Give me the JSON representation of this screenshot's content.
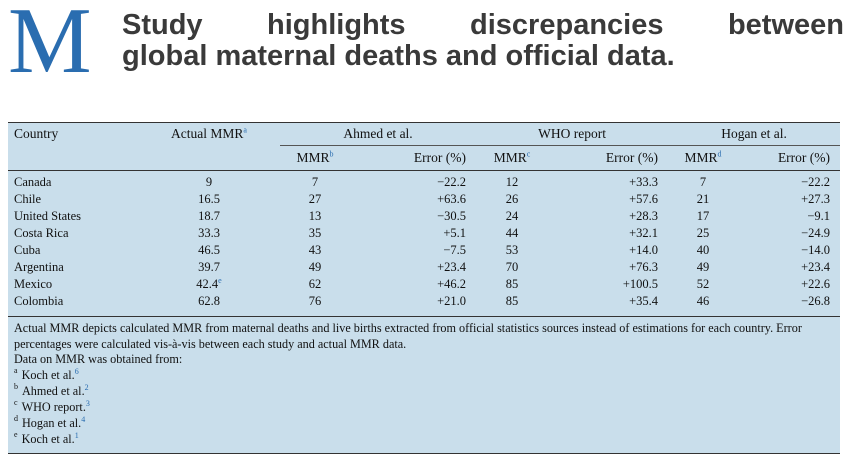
{
  "header": {
    "logo": "M",
    "headline_line1_words": [
      "Study",
      "highlights",
      "discrepancies",
      "between"
    ],
    "headline_line2": "global maternal deaths and official data."
  },
  "table": {
    "col_country": "Country",
    "col_actual": "Actual MMR",
    "col_actual_ref": "a",
    "groups": [
      {
        "name": "Ahmed et al.",
        "mmr": "MMR",
        "mmr_ref": "b",
        "err": "Error (%)"
      },
      {
        "name": "WHO report",
        "mmr": "MMR",
        "mmr_ref": "c",
        "err": "Error (%)"
      },
      {
        "name": "Hogan et al.",
        "mmr": "MMR",
        "mmr_ref": "d",
        "err": "Error (%)"
      }
    ],
    "rows": [
      {
        "country": "Canada",
        "actual": "9",
        "actual_ref": "",
        "ahmed_mmr": "7",
        "ahmed_err": "−22.2",
        "who_mmr": "12",
        "who_err": "+33.3",
        "hogan_mmr": "7",
        "hogan_err": "−22.2"
      },
      {
        "country": "Chile",
        "actual": "16.5",
        "actual_ref": "",
        "ahmed_mmr": "27",
        "ahmed_err": "+63.6",
        "who_mmr": "26",
        "who_err": "+57.6",
        "hogan_mmr": "21",
        "hogan_err": "+27.3"
      },
      {
        "country": "United States",
        "actual": "18.7",
        "actual_ref": "",
        "ahmed_mmr": "13",
        "ahmed_err": "−30.5",
        "who_mmr": "24",
        "who_err": "+28.3",
        "hogan_mmr": "17",
        "hogan_err": "−9.1"
      },
      {
        "country": "Costa Rica",
        "actual": "33.3",
        "actual_ref": "",
        "ahmed_mmr": "35",
        "ahmed_err": "+5.1",
        "who_mmr": "44",
        "who_err": "+32.1",
        "hogan_mmr": "25",
        "hogan_err": "−24.9"
      },
      {
        "country": "Cuba",
        "actual": "46.5",
        "actual_ref": "",
        "ahmed_mmr": "43",
        "ahmed_err": "−7.5",
        "who_mmr": "53",
        "who_err": "+14.0",
        "hogan_mmr": "40",
        "hogan_err": "−14.0"
      },
      {
        "country": "Argentina",
        "actual": "39.7",
        "actual_ref": "",
        "ahmed_mmr": "49",
        "ahmed_err": "+23.4",
        "who_mmr": "70",
        "who_err": "+76.3",
        "hogan_mmr": "49",
        "hogan_err": "+23.4"
      },
      {
        "country": "Mexico",
        "actual": "42.4",
        "actual_ref": "e",
        "ahmed_mmr": "62",
        "ahmed_err": "+46.2",
        "who_mmr": "85",
        "who_err": "+100.5",
        "hogan_mmr": "52",
        "hogan_err": "+22.6"
      },
      {
        "country": "Colombia",
        "actual": "62.8",
        "actual_ref": "",
        "ahmed_mmr": "76",
        "ahmed_err": "+21.0",
        "who_mmr": "85",
        "who_err": "+35.4",
        "hogan_mmr": "46",
        "hogan_err": "−26.8"
      }
    ]
  },
  "notes": {
    "description": "Actual MMR depicts calculated MMR from maternal deaths and live births extracted from official statistics sources instead of estimations for each country. Error percentages were calculated vis-à-vis between each study and actual MMR data.",
    "sources_intro": "Data on MMR was obtained from:",
    "footnotes": [
      {
        "mark": "a",
        "text": "Koch et al.",
        "ref": "6"
      },
      {
        "mark": "b",
        "text": "Ahmed et al.",
        "ref": "2"
      },
      {
        "mark": "c",
        "text": "WHO report.",
        "ref": "3"
      },
      {
        "mark": "d",
        "text": "Hogan et al.",
        "ref": "4"
      },
      {
        "mark": "e",
        "text": "Koch et al.",
        "ref": "1"
      }
    ]
  },
  "colors": {
    "logo": "#2a6db0",
    "table_bg": "#c9deeb",
    "headline": "#3a3a3a"
  }
}
